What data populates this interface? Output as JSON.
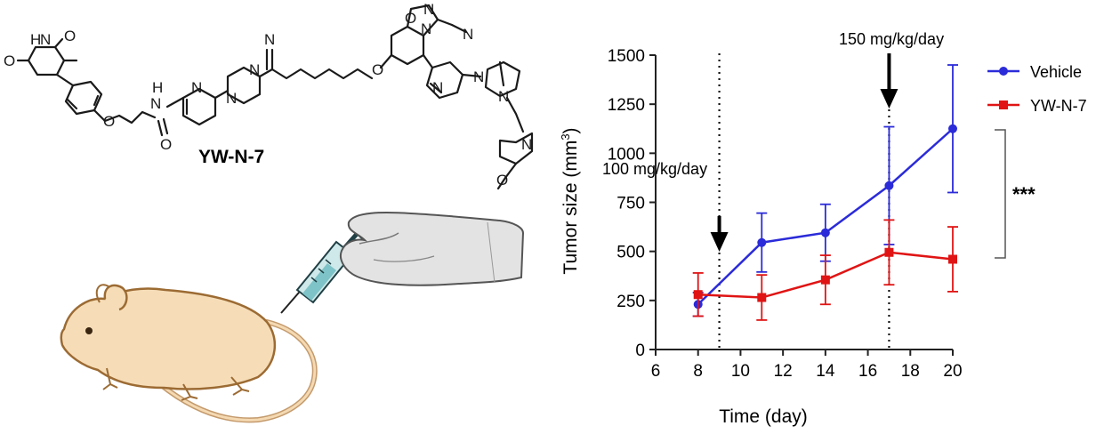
{
  "compound": {
    "name": "YW-N-7",
    "atoms": [
      "H",
      "N",
      "O",
      "O",
      "O",
      "H",
      "N",
      "O",
      "N",
      "N",
      "N",
      "N",
      "O",
      "O",
      "N",
      "N",
      "N",
      "N",
      "N",
      "N",
      "N",
      "O"
    ]
  },
  "colors": {
    "vehicle": "#2b2bd9",
    "ywn7": "#e01414",
    "mouse_fill": "#f6ddb8",
    "mouse_outline": "#9c6b33",
    "glove": "#e2e2e2"
  },
  "chart_data": {
    "type": "line",
    "xlabel": "Time (day)",
    "ylabel": "Tumor size (mm",
    "ylabel_sup": "3",
    "ylabel_close": ")",
    "xlim": [
      6,
      20
    ],
    "ylim": [
      0,
      1500
    ],
    "xticks": [
      6,
      8,
      10,
      12,
      14,
      16,
      18,
      20
    ],
    "yticks": [
      0,
      250,
      500,
      750,
      1000,
      1250,
      1500
    ],
    "legend_position": "top-right",
    "series": [
      {
        "name": "Vehicle",
        "color": "#2b2bd9",
        "marker": "circle",
        "x": [
          8,
          11,
          14,
          17,
          20
        ],
        "y": [
          230,
          545,
          595,
          835,
          1125
        ],
        "err": [
          60,
          150,
          145,
          300,
          325
        ]
      },
      {
        "name": "YW-N-7",
        "color": "#e01414",
        "marker": "square",
        "x": [
          8,
          11,
          14,
          17,
          20
        ],
        "y": [
          280,
          265,
          355,
          495,
          460
        ],
        "err": [
          110,
          115,
          125,
          165,
          165
        ]
      }
    ],
    "annotations": [
      {
        "text": "100 mg/kg/day",
        "x": 9
      },
      {
        "text": "150 mg/kg/day",
        "x": 17
      }
    ],
    "significance": "***"
  }
}
